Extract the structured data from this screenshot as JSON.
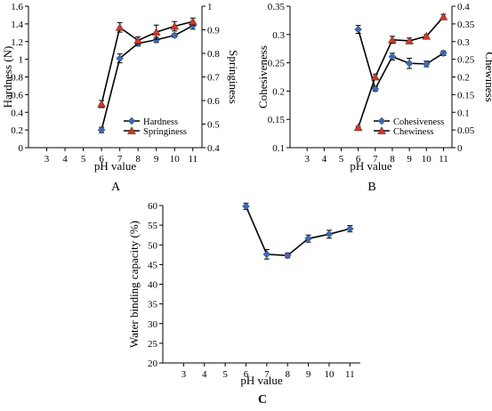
{
  "chart_data": [
    {
      "type": "line",
      "panel_label": "A",
      "xlabel": "pH value",
      "ylabel": "Hardness (N)",
      "y2label": "Springiness",
      "x_ticks": [
        3,
        4,
        5,
        6,
        7,
        8,
        9,
        10,
        11
      ],
      "xlim": [
        2,
        11.5
      ],
      "ylim": [
        0,
        1.6
      ],
      "y_ticks": [
        0,
        0.2,
        0.4,
        0.6,
        0.8,
        1,
        1.2,
        1.4,
        1.6
      ],
      "y2lim": [
        0.4,
        1
      ],
      "y2_ticks": [
        0.4,
        0.5,
        0.6,
        0.7,
        0.8,
        0.9,
        1
      ],
      "series": [
        {
          "name": "Hardness",
          "axis": "left",
          "color": "#3a6ab5",
          "marker": "diamond",
          "x": [
            6,
            7,
            8,
            9,
            10,
            11
          ],
          "y": [
            0.2,
            1.01,
            1.18,
            1.22,
            1.27,
            1.38
          ],
          "err": [
            0.03,
            0.05,
            0.03,
            0.03,
            0.02,
            0.04
          ]
        },
        {
          "name": "Springiness",
          "axis": "right",
          "color": "#cc3a2a",
          "marker": "triangle",
          "x": [
            6,
            7,
            8,
            9,
            10,
            11
          ],
          "y": [
            0.585,
            0.91,
            0.855,
            0.89,
            0.915,
            0.935
          ],
          "err": [
            0.015,
            0.02,
            0.015,
            0.03,
            0.02,
            0.015
          ]
        }
      ],
      "legend_position": "bottom-right"
    },
    {
      "type": "line",
      "panel_label": "B",
      "xlabel": "pH value",
      "ylabel": "Cohesiveness",
      "y2label": "Chewiness",
      "x_ticks": [
        3,
        4,
        5,
        6,
        7,
        8,
        9,
        10,
        11
      ],
      "xlim": [
        2,
        11.5
      ],
      "ylim": [
        0.1,
        0.35
      ],
      "y_ticks": [
        0.1,
        0.15,
        0.2,
        0.25,
        0.3,
        0.35
      ],
      "y2lim": [
        0,
        0.4
      ],
      "y2_ticks": [
        0,
        0.05,
        0.1,
        0.15,
        0.2,
        0.25,
        0.3,
        0.35,
        0.4
      ],
      "series": [
        {
          "name": "Cohesiveness",
          "axis": "left",
          "color": "#3a6ab5",
          "marker": "diamond",
          "x": [
            6,
            7,
            8,
            9,
            10,
            11
          ],
          "y": [
            0.309,
            0.204,
            0.261,
            0.249,
            0.248,
            0.267
          ],
          "err": [
            0.007,
            0.004,
            0.006,
            0.009,
            0.005,
            0.004
          ]
        },
        {
          "name": "Chewiness",
          "axis": "right",
          "color": "#cc3a2a",
          "marker": "triangle",
          "x": [
            6,
            7,
            8,
            9,
            10,
            11
          ],
          "y": [
            0.057,
            0.2,
            0.305,
            0.302,
            0.315,
            0.37
          ],
          "err": [
            0.003,
            0.007,
            0.01,
            0.008,
            0.005,
            0.007
          ]
        }
      ],
      "legend_position": "bottom-right"
    },
    {
      "type": "line",
      "panel_label": "C",
      "xlabel": "pH value",
      "ylabel": "Water binding capacity (%)",
      "x_ticks": [
        3,
        4,
        5,
        6,
        7,
        8,
        9,
        10,
        11
      ],
      "xlim": [
        2,
        11.5
      ],
      "ylim": [
        20,
        60
      ],
      "y_ticks": [
        20,
        25,
        30,
        35,
        40,
        45,
        50,
        55,
        60
      ],
      "series": [
        {
          "color": "#3a6ab5",
          "marker": "diamond",
          "axis": "left",
          "x": [
            6,
            7,
            8,
            9,
            10,
            11
          ],
          "y": [
            59.8,
            47.6,
            47.3,
            51.6,
            52.7,
            54.1
          ],
          "err": [
            0.8,
            1.2,
            0.6,
            0.9,
            1.0,
            0.8
          ]
        }
      ]
    }
  ]
}
